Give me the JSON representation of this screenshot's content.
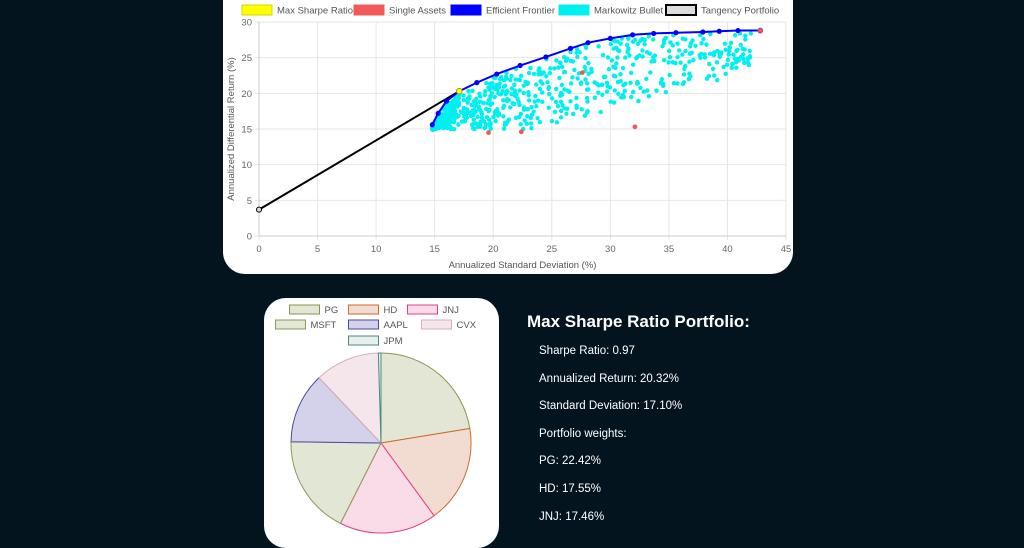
{
  "colors": {
    "background": "#03141f",
    "max_sharpe": "#ffff00",
    "single_assets": "#f0595a",
    "efficient_frontier": "#0000ff",
    "markowitz_bullet": "#00f0f0",
    "tangency": "#000000"
  },
  "chart_data": [
    {
      "type": "scatter",
      "title": "",
      "xlabel": "Annualized Standard Deviation (%)",
      "ylabel": "Annualized Differential Return (%)",
      "xlim": [
        0,
        45
      ],
      "ylim": [
        0,
        30
      ],
      "xticks": [
        "0",
        "5",
        "10",
        "15",
        "20",
        "25",
        "30",
        "35",
        "40",
        "45"
      ],
      "yticks": [
        "0",
        "5",
        "10",
        "15",
        "20",
        "25",
        "30"
      ],
      "grid": true,
      "legend_position": "top",
      "legend": [
        {
          "label": "Max Sharpe Ratio",
          "color": "#ffff00",
          "border": "#d4d400"
        },
        {
          "label": "Single Assets",
          "color": "#f0595a",
          "border": "#f0595a"
        },
        {
          "label": "Efficient Frontier",
          "color": "#0000ff",
          "border": "#0000ff"
        },
        {
          "label": "Markowitz Bullet",
          "color": "#00f0f0",
          "border": "#00f0f0"
        },
        {
          "label": "Tangency Portfolio",
          "color": "#dddddd",
          "border": "#000000"
        }
      ],
      "series": [
        {
          "name": "Efficient Frontier",
          "kind": "line",
          "points": [
            [
              14.8,
              15.6
            ],
            [
              15.3,
              17.2
            ],
            [
              16.0,
              18.9
            ],
            [
              17.1,
              20.3
            ],
            [
              18.6,
              21.5
            ],
            [
              20.3,
              22.7
            ],
            [
              22.3,
              23.9
            ],
            [
              24.5,
              25.1
            ],
            [
              26.6,
              26.3
            ],
            [
              28.1,
              27.1
            ],
            [
              30.0,
              27.7
            ],
            [
              31.9,
              28.2
            ],
            [
              33.7,
              28.4
            ],
            [
              35.6,
              28.5
            ],
            [
              37.9,
              28.6
            ],
            [
              39.3,
              28.7
            ],
            [
              40.9,
              28.8
            ],
            [
              42.8,
              28.8
            ]
          ]
        },
        {
          "name": "Tangency Portfolio",
          "kind": "line",
          "points": [
            [
              0,
              3.7
            ],
            [
              17.1,
              20.3
            ]
          ]
        },
        {
          "name": "Max Sharpe Ratio",
          "kind": "point",
          "points": [
            [
              17.1,
              20.3
            ]
          ]
        },
        {
          "name": "Single Assets",
          "kind": "point",
          "points": [
            [
              19.6,
              14.5
            ],
            [
              22.4,
              14.6
            ],
            [
              32.1,
              15.3
            ],
            [
              27.6,
              22.9
            ],
            [
              42.8,
              28.8
            ]
          ]
        },
        {
          "name": "Markowitz Bullet",
          "kind": "cloud",
          "region": {
            "x_min": 14.8,
            "x_max": 42.0,
            "y_min": 15.0,
            "y_max": 28.5
          }
        }
      ]
    },
    {
      "type": "pie",
      "legend_position": "top",
      "labels": [
        "PG",
        "HD",
        "JNJ",
        "MSFT",
        "AAPL",
        "CVX",
        "JPM"
      ],
      "values": [
        22.42,
        17.55,
        17.46,
        17.8,
        12.7,
        11.6,
        0.47
      ],
      "colors": [
        "#e3e6d4",
        "#f2dcd2",
        "#fadce8",
        "#e2e6d4",
        "#d4d2ea",
        "#f5e6ec",
        "#e4efee"
      ],
      "borders": [
        "#879650",
        "#d06a2c",
        "#e0408a",
        "#8a9a58",
        "#4a4a9a",
        "#d6b0bc",
        "#4e8a80"
      ]
    }
  ],
  "info": {
    "title": "Max Sharpe Ratio Portfolio:",
    "lines": [
      "Sharpe Ratio: 0.97",
      "Annualized Return: 20.32%",
      "Standard Deviation: 17.10%",
      "Portfolio weights:",
      "PG: 22.42%",
      "HD: 17.55%",
      "JNJ: 17.46%"
    ]
  }
}
